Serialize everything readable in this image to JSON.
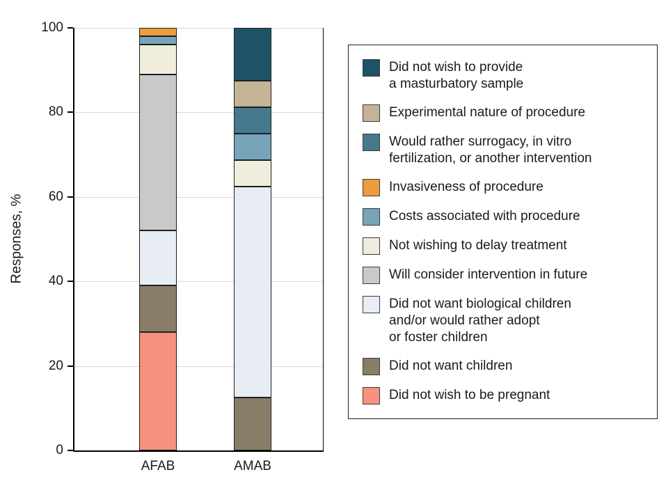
{
  "chart_data": {
    "type": "bar",
    "stacked": true,
    "title": "",
    "xlabel": "",
    "ylabel": "Responses, %",
    "ylim": [
      0,
      100
    ],
    "yticks": [
      0,
      20,
      40,
      60,
      80,
      100
    ],
    "grid": true,
    "legend_position": "right",
    "categories": [
      "AFAB",
      "AMAB"
    ],
    "series": [
      {
        "name": "Did not wish to provide a masturbatory sample",
        "legend_label": "Did not wish to provide\na masturbatory sample",
        "color": "#1d5364",
        "values": [
          0,
          12.5
        ]
      },
      {
        "name": "Experimental nature of procedure",
        "legend_label": "Experimental nature of procedure",
        "color": "#c4b496",
        "values": [
          0,
          6.25
        ]
      },
      {
        "name": "Would rather surrogacy, in vitro fertilization, or another intervention",
        "legend_label": "Would rather surrogacy, in vitro\nfertilization, or another intervention",
        "color": "#44798e",
        "values": [
          0,
          6.25
        ]
      },
      {
        "name": "Invasiveness of procedure",
        "legend_label": "Invasiveness of procedure",
        "color": "#ec9c3d",
        "values": [
          2,
          0
        ]
      },
      {
        "name": "Costs associated with procedure",
        "legend_label": "Costs associated with procedure",
        "color": "#76a5ba",
        "values": [
          2,
          6.25
        ]
      },
      {
        "name": "Not wishing to delay treatment",
        "legend_label": "Not wishing to delay treatment",
        "color": "#f1eddd",
        "values": [
          7,
          6.25
        ]
      },
      {
        "name": "Will consider intervention in future",
        "legend_label": "Will consider intervention in future",
        "color": "#c9c9c9",
        "values": [
          37,
          0
        ]
      },
      {
        "name": "Did not want biological children and/or would rather adopt or foster children",
        "legend_label": "Did not want biological children\nand/or would rather adopt\nor foster children",
        "color": "#e7edf2",
        "values": [
          13,
          50
        ]
      },
      {
        "name": "Did not want children",
        "legend_label": "Did not want children",
        "color": "#8a7d68",
        "values": [
          11,
          12.5
        ]
      },
      {
        "name": "Did not wish to be pregnant",
        "legend_label": "Did not wish to be pregnant",
        "color": "#f5917c",
        "values": [
          28,
          0
        ]
      }
    ]
  }
}
